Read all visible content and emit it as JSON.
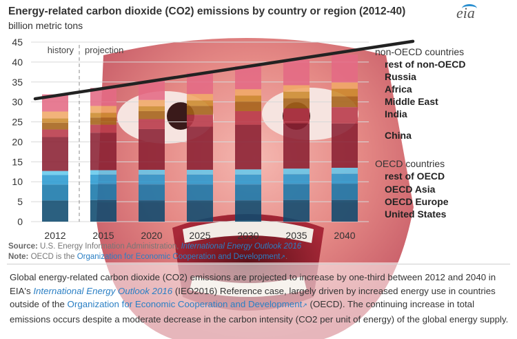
{
  "header": {
    "title": "Energy-related carbon dioxide (CO2) emissions by country or region (2012-40)",
    "subtitle": "billion metric tons",
    "logo": "eia"
  },
  "annotations": {
    "history": "history",
    "projection": "projection"
  },
  "legend": {
    "non_oecd_heading": "non-OECD countries",
    "oecd_heading": "OECD countries",
    "items": [
      {
        "label": "rest of non-OECD",
        "color": "#e46a84"
      },
      {
        "label": "Russia",
        "color": "#f0a868"
      },
      {
        "label": "Africa",
        "color": "#cc8a2c"
      },
      {
        "label": "Middle East",
        "color": "#a56218"
      },
      {
        "label": "India",
        "color": "#b83848"
      },
      {
        "label": "China",
        "color": "#8a2032"
      },
      {
        "label": "rest of OECD",
        "color": "#64c8ec"
      },
      {
        "label": "OECD Asia",
        "color": "#2a9ad0"
      },
      {
        "label": "OECD Europe",
        "color": "#1878aa"
      },
      {
        "label": "United States",
        "color": "#0e4a6e"
      }
    ]
  },
  "chart_data": {
    "type": "bar",
    "stacked": true,
    "title": "Energy-related carbon dioxide (CO2) emissions by country or region (2012-40)",
    "ylabel": "billion metric tons",
    "ylim": [
      0,
      45
    ],
    "yticks": [
      0,
      5,
      10,
      15,
      20,
      25,
      30,
      35,
      40,
      45
    ],
    "categories": [
      "2012",
      "2015",
      "2020",
      "2025",
      "2030",
      "2035",
      "2040"
    ],
    "series": [
      {
        "name": "United States",
        "color": "#0e4a6e",
        "values": [
          5.3,
          5.4,
          5.3,
          5.3,
          5.3,
          5.4,
          5.4
        ]
      },
      {
        "name": "OECD Europe",
        "color": "#1878aa",
        "values": [
          4.0,
          4.0,
          4.0,
          4.0,
          4.0,
          4.0,
          4.1
        ]
      },
      {
        "name": "OECD Asia",
        "color": "#2a9ad0",
        "values": [
          2.4,
          2.4,
          2.5,
          2.5,
          2.5,
          2.5,
          2.5
        ]
      },
      {
        "name": "rest of OECD",
        "color": "#64c8ec",
        "values": [
          1.0,
          1.1,
          1.2,
          1.2,
          1.3,
          1.4,
          1.5
        ]
      },
      {
        "name": "China",
        "color": "#8a2032",
        "values": [
          8.5,
          9.4,
          10.2,
          10.8,
          11.2,
          11.3,
          11.1
        ]
      },
      {
        "name": "India",
        "color": "#b83848",
        "values": [
          1.9,
          2.0,
          2.5,
          3.0,
          3.4,
          3.8,
          4.1
        ]
      },
      {
        "name": "Middle East",
        "color": "#a56218",
        "values": [
          1.7,
          1.8,
          2.0,
          2.2,
          2.4,
          2.5,
          2.7
        ]
      },
      {
        "name": "Africa",
        "color": "#cc8a2c",
        "values": [
          1.1,
          1.2,
          1.2,
          1.4,
          1.5,
          1.7,
          1.9
        ]
      },
      {
        "name": "Russia",
        "color": "#f0a868",
        "values": [
          1.7,
          1.7,
          1.6,
          1.6,
          1.6,
          1.6,
          1.6
        ]
      },
      {
        "name": "rest of non-OECD",
        "color": "#e46a84",
        "values": [
          4.3,
          4.5,
          4.9,
          5.3,
          5.8,
          6.4,
          7.0
        ]
      }
    ],
    "trend_line": {
      "from": {
        "x": "2012",
        "y": 30.8
      },
      "to": {
        "x": "2040",
        "y": 45.2
      },
      "color": "#222222"
    }
  },
  "footnotes": {
    "source_label": "Source:",
    "source_text": "U.S. Energy Information Administration,",
    "source_link": "International Energy Outlook 2016",
    "note_label": "Note:",
    "note_text": "OECD is the",
    "note_link": "Organization for Economic Cooperation and Development",
    "note_end": "."
  },
  "caption": {
    "p1": "Global energy-related carbon dioxide (CO2) emissions are projected to increase by one-third between 2012 and 2040 in EIA's",
    "link1": "International Energy Outlook 2016",
    "p2": "(IEO2016) Reference case, largely driven by increased energy use in countries outside of the",
    "link2": "Organization for Economic Cooperation and Development",
    "p3": "(OECD). The continuing increase in total emissions occurs despite a moderate decrease in the carbon intensity (CO2 per unit of energy) of the global energy supply."
  }
}
